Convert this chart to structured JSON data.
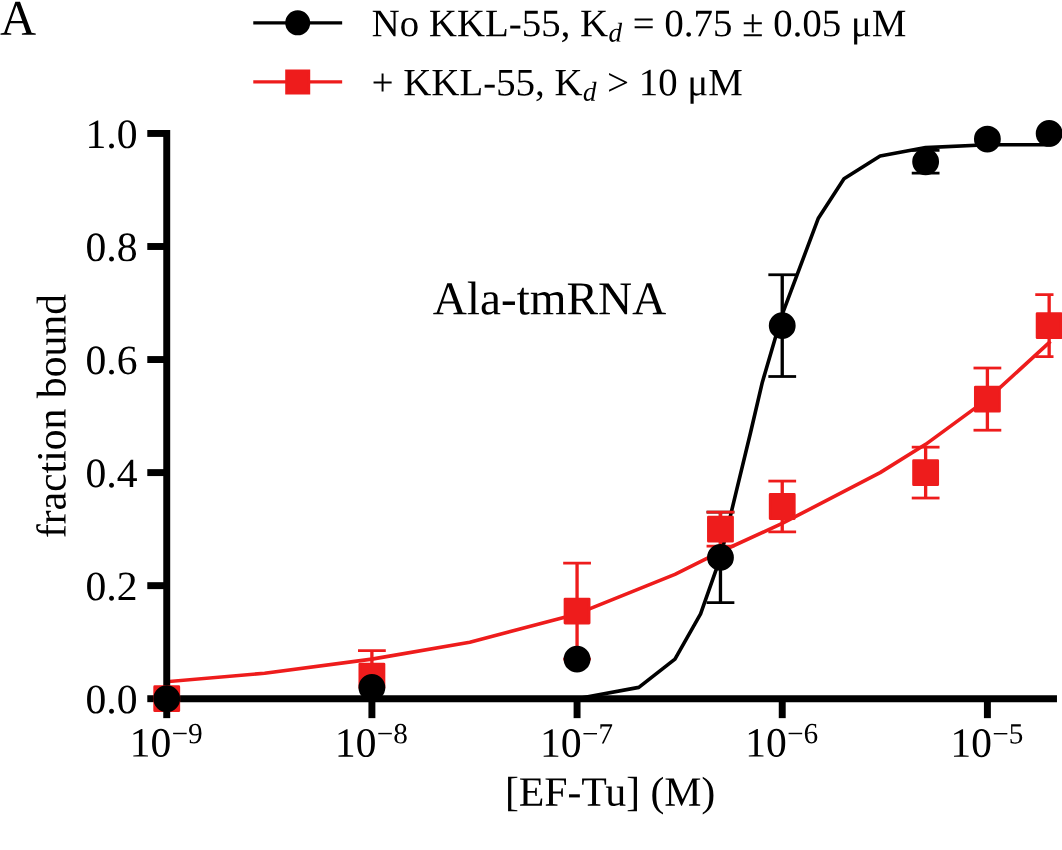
{
  "chart_data": {
    "type": "scatter",
    "xlabel": "[EF-Tu] (M)",
    "ylabel": "fraction bound",
    "log": "x",
    "legend": "top",
    "grid": false,
    "annotations": [
      "Ala-tmRNA",
      "A"
    ],
    "xlim": [
      1e-09,
      2.1e-05
    ],
    "xticks": [
      {
        "value": 1e-09,
        "label": "10$^{−9}$"
      },
      {
        "value": 1e-08,
        "label": "10$^{−8}$"
      },
      {
        "value": 1e-07,
        "label": "10$^{−7}$"
      },
      {
        "value": 1e-06,
        "label": "10$^{−6}$"
      },
      {
        "value": 1e-05,
        "label": "10$^{−5}$"
      }
    ],
    "ylim": [
      0,
      1.0
    ],
    "yticks": [
      {
        "value": 0,
        "label": "0.0"
      },
      {
        "value": 0.2,
        "label": "0.2"
      },
      {
        "value": 0.4,
        "label": "0.4"
      },
      {
        "value": 0.6,
        "label": "0.6"
      },
      {
        "value": 0.8,
        "label": "0.8"
      },
      {
        "value": 1.0,
        "label": "1.0"
      }
    ],
    "x": [
      1e-09,
      1e-08,
      1e-07,
      5e-07,
      1e-06,
      5e-06,
      1e-05,
      2e-05
    ],
    "series": [
      {
        "name": "No KKL-55, K$_{d}$ = 0.75 ± 0.05 μM",
        "color": "#000000",
        "marker": "circle",
        "values": [
          0.0,
          0.02,
          0.07,
          0.25,
          0.66,
          0.95,
          0.99,
          1.0
        ],
        "errors": [
          null,
          null,
          null,
          0.08,
          0.09,
          0.02,
          null,
          null
        ]
      },
      {
        "name": "+ KKL-55, K$_{d}$ > 10 μM",
        "color": "#ee1c1c",
        "marker": "square",
        "values": [
          0.0,
          0.04,
          0.155,
          0.3,
          0.34,
          0.4,
          0.53,
          0.66
        ],
        "errors": [
          null,
          0.045,
          0.085,
          0.03,
          0.045,
          0.045,
          0.055,
          0.055
        ]
      },
      {
        "type": "line",
        "color": "#000000",
        "marker": "none",
        "x": [
          1e-07,
          2e-07,
          3e-07,
          4e-07,
          5e-07,
          6e-07,
          7e-07,
          8e-07,
          1e-06,
          1.5e-06,
          2e-06,
          3e-06,
          5e-06,
          1e-05,
          2e-05
        ],
        "values": [
          0.0,
          0.02,
          0.07,
          0.15,
          0.25,
          0.37,
          0.47,
          0.56,
          0.68,
          0.85,
          0.92,
          0.96,
          0.975,
          0.98,
          0.98
        ]
      },
      {
        "type": "line",
        "color": "#ee1c1c",
        "marker": "none",
        "x": [
          1e-09,
          3e-09,
          1e-08,
          3e-08,
          1e-07,
          3e-07,
          5e-07,
          1e-06,
          3e-06,
          5e-06,
          1e-05,
          2e-05
        ],
        "values": [
          0.03,
          0.045,
          0.07,
          0.1,
          0.15,
          0.22,
          0.26,
          0.31,
          0.4,
          0.45,
          0.53,
          0.63
        ]
      }
    ]
  }
}
